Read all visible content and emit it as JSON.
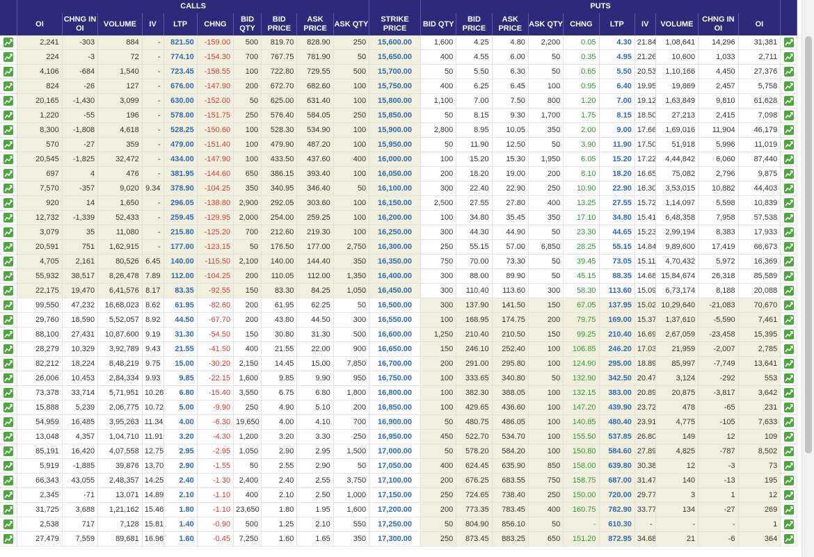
{
  "header": {
    "calls_label": "CALLS",
    "puts_label": "PUTS"
  },
  "columns": {
    "calls": [
      "OI",
      "CHNG IN OI",
      "VOLUME",
      "IV",
      "LTP",
      "CHNG",
      "BID QTY",
      "BID PRICE",
      "ASK PRICE",
      "ASK QTY"
    ],
    "strike": "STRIKE PRICE",
    "puts": [
      "BID QTY",
      "BID PRICE",
      "ASK PRICE",
      "ASK QTY",
      "CHNG",
      "LTP",
      "IV",
      "VOLUME",
      "CHNG IN OI",
      "OI"
    ]
  },
  "colors": {
    "header_bg": "#2c2a7a",
    "itm_bg": "#f1f0dc",
    "ltp": "#2e6bb8",
    "negative": "#d23c3c",
    "positive": "#2e9a30",
    "chart_icon": "#4aa83a"
  },
  "icons": {
    "row_chart": "chart-icon"
  },
  "rows": [
    {
      "strike": "15,600.00",
      "calls": [
        "2,241",
        "-303",
        "884",
        "-",
        "821.50",
        "-159.00",
        "500",
        "819.70",
        "828.90",
        "250"
      ],
      "puts": [
        "1,600",
        "4.25",
        "4.80",
        "2,200",
        "0.05",
        "4.30",
        "21.84",
        "1,08,641",
        "14,296",
        "31,381"
      ]
    },
    {
      "strike": "15,650.00",
      "calls": [
        "224",
        "-3",
        "72",
        "-",
        "774.10",
        "-154.30",
        "700",
        "767.75",
        "781.90",
        "50"
      ],
      "puts": [
        "400",
        "4.55",
        "6.00",
        "50",
        "0.35",
        "4.95",
        "21.26",
        "10,600",
        "1,033",
        "2,711"
      ]
    },
    {
      "strike": "15,700.00",
      "calls": [
        "4,106",
        "-684",
        "1,540",
        "-",
        "723.45",
        "-158.55",
        "100",
        "722.80",
        "729.55",
        "500"
      ],
      "puts": [
        "50",
        "5.50",
        "6.30",
        "50",
        "0.65",
        "5.50",
        "20.53",
        "1,10,166",
        "4,450",
        "27,376"
      ]
    },
    {
      "strike": "15,750.00",
      "calls": [
        "824",
        "-26",
        "127",
        "-",
        "676.00",
        "-147.90",
        "200",
        "672.70",
        "682.60",
        "100"
      ],
      "puts": [
        "400",
        "6.25",
        "6.45",
        "100",
        "0.95",
        "6.40",
        "19.95",
        "19,869",
        "2,457",
        "5,758"
      ]
    },
    {
      "strike": "15,800.00",
      "calls": [
        "20,165",
        "-1,430",
        "3,099",
        "-",
        "630.00",
        "-152.00",
        "50",
        "625.00",
        "631.40",
        "100"
      ],
      "puts": [
        "1,100",
        "7.00",
        "7.50",
        "800",
        "1.20",
        "7.00",
        "19.12",
        "1,63,849",
        "9,810",
        "61,628"
      ]
    },
    {
      "strike": "15,850.00",
      "calls": [
        "1,220",
        "-55",
        "196",
        "-",
        "578.00",
        "-151.75",
        "250",
        "576.40",
        "584.05",
        "250"
      ],
      "puts": [
        "50",
        "8.15",
        "9.30",
        "1,700",
        "1.75",
        "8.15",
        "18.50",
        "27,213",
        "2,415",
        "7,098"
      ]
    },
    {
      "strike": "15,900.00",
      "calls": [
        "8,300",
        "-1,808",
        "4,618",
        "-",
        "528.25",
        "-150.60",
        "100",
        "528.30",
        "534.90",
        "100"
      ],
      "puts": [
        "2,800",
        "8.95",
        "10.05",
        "350",
        "2.00",
        "9.00",
        "17.66",
        "1,69,016",
        "11,904",
        "46,179"
      ]
    },
    {
      "strike": "15,950.00",
      "calls": [
        "570",
        "-27",
        "359",
        "-",
        "479.00",
        "-151.40",
        "100",
        "479.90",
        "487.20",
        "100"
      ],
      "puts": [
        "50",
        "11.90",
        "12.50",
        "50",
        "3.90",
        "11.90",
        "17.50",
        "51,918",
        "5,996",
        "11,019"
      ]
    },
    {
      "strike": "16,000.00",
      "calls": [
        "20,545",
        "-1,825",
        "32,472",
        "-",
        "434.00",
        "-147.90",
        "100",
        "433.50",
        "437.60",
        "400"
      ],
      "puts": [
        "100",
        "15.20",
        "15.30",
        "1,950",
        "6.05",
        "15.20",
        "17.22",
        "4,44,842",
        "6,060",
        "87,440"
      ]
    },
    {
      "strike": "16,050.00",
      "calls": [
        "697",
        "4",
        "476",
        "-",
        "381.95",
        "-144.60",
        "650",
        "386.15",
        "393.40",
        "100"
      ],
      "puts": [
        "200",
        "18.20",
        "19.00",
        "200",
        "8.10",
        "18.20",
        "16.65",
        "75,082",
        "2,796",
        "9,875"
      ]
    },
    {
      "strike": "16,100.00",
      "calls": [
        "7,570",
        "-357",
        "9,020",
        "9.34",
        "378.90",
        "-104.25",
        "350",
        "340.95",
        "346.40",
        "50"
      ],
      "puts": [
        "300",
        "22.40",
        "22.90",
        "250",
        "10.90",
        "22.90",
        "16.30",
        "3,53,015",
        "10,882",
        "44,403"
      ]
    },
    {
      "strike": "16,150.00",
      "calls": [
        "920",
        "14",
        "1,650",
        "-",
        "296.05",
        "-138.80",
        "2,900",
        "292.05",
        "303.60",
        "100"
      ],
      "puts": [
        "2,500",
        "27.55",
        "27.80",
        "400",
        "13.25",
        "27.55",
        "15.72",
        "1,14,097",
        "5,598",
        "10,839"
      ]
    },
    {
      "strike": "16,200.00",
      "calls": [
        "12,732",
        "-1,339",
        "52,433",
        "-",
        "259.45",
        "-129.95",
        "2,000",
        "254.00",
        "259.25",
        "100"
      ],
      "puts": [
        "100",
        "34.80",
        "35.45",
        "350",
        "17.10",
        "34.80",
        "15.41",
        "6,48,358",
        "7,958",
        "57,538"
      ]
    },
    {
      "strike": "16,250.00",
      "calls": [
        "3,079",
        "35",
        "11,080",
        "-",
        "215.80",
        "-125.20",
        "700",
        "212.60",
        "219.30",
        "100"
      ],
      "puts": [
        "300",
        "44.30",
        "44.90",
        "50",
        "23.30",
        "44.65",
        "15.23",
        "2,99,194",
        "8,383",
        "17,933"
      ]
    },
    {
      "strike": "16,300.00",
      "calls": [
        "20,591",
        "751",
        "1,62,915",
        "-",
        "177.00",
        "-123.15",
        "50",
        "176.50",
        "177.00",
        "2,750"
      ],
      "puts": [
        "250",
        "55.15",
        "57.00",
        "6,850",
        "28.25",
        "55.15",
        "14.84",
        "9,89,600",
        "17,419",
        "66,673"
      ]
    },
    {
      "strike": "16,350.00",
      "calls": [
        "4,705",
        "2,161",
        "80,526",
        "6.45",
        "140.00",
        "-115.50",
        "2,100",
        "140.00",
        "144.40",
        "350"
      ],
      "puts": [
        "750",
        "70.00",
        "73.30",
        "50",
        "39.45",
        "73.05",
        "15.11",
        "4,70,432",
        "5,972",
        "16,369"
      ]
    },
    {
      "strike": "16,400.00",
      "calls": [
        "55,932",
        "38,517",
        "8,26,478",
        "7.89",
        "112.00",
        "-104.25",
        "200",
        "110.05",
        "112.00",
        "1,350"
      ],
      "puts": [
        "300",
        "88.00",
        "89.90",
        "50",
        "45.15",
        "88.35",
        "14.68",
        "15,84,674",
        "26,318",
        "85,589"
      ]
    },
    {
      "strike": "16,450.00",
      "calls": [
        "22,175",
        "19,470",
        "6,41,576",
        "8.17",
        "83.35",
        "-92.55",
        "150",
        "83.30",
        "84.25",
        "1,050"
      ],
      "puts": [
        "300",
        "110.40",
        "113.60",
        "300",
        "58.30",
        "113.60",
        "15.09",
        "6,73,174",
        "8,188",
        "20,088"
      ]
    },
    {
      "strike": "16,500.00",
      "calls": [
        "99,550",
        "47,232",
        "16,68,023",
        "8.62",
        "61.95",
        "-82.60",
        "200",
        "61.95",
        "62.25",
        "50"
      ],
      "puts": [
        "300",
        "137.90",
        "141.50",
        "150",
        "67.05",
        "137.95",
        "15.02",
        "10,29,640",
        "-21,083",
        "70,670"
      ]
    },
    {
      "strike": "16,550.00",
      "calls": [
        "29,760",
        "18,590",
        "5,52,057",
        "8.92",
        "44.50",
        "-67.70",
        "200",
        "43.80",
        "44.50",
        "300"
      ],
      "puts": [
        "100",
        "168.95",
        "174.75",
        "200",
        "79.75",
        "169.00",
        "15.37",
        "1,37,610",
        "-5,590",
        "7,461"
      ]
    },
    {
      "strike": "16,600.00",
      "calls": [
        "88,100",
        "27,431",
        "10,87,600",
        "9.19",
        "31.30",
        "-54.50",
        "150",
        "30.80",
        "31.30",
        "500"
      ],
      "puts": [
        "1,250",
        "210.40",
        "210.50",
        "150",
        "99.25",
        "210.40",
        "16.69",
        "2,67,059",
        "-23,458",
        "15,395"
      ]
    },
    {
      "strike": "16,650.00",
      "calls": [
        "28,279",
        "10,329",
        "3,92,789",
        "9.43",
        "21.55",
        "-41.50",
        "400",
        "21.55",
        "22.00",
        "900"
      ],
      "puts": [
        "150",
        "246.10",
        "252.40",
        "100",
        "106.85",
        "246.20",
        "17.03",
        "21,959",
        "-2,007",
        "2,785"
      ]
    },
    {
      "strike": "16,700.00",
      "calls": [
        "82,212",
        "18,224",
        "8,48,219",
        "9.75",
        "15.00",
        "-30.20",
        "2,150",
        "14.45",
        "15.00",
        "7,850"
      ],
      "puts": [
        "200",
        "291.00",
        "295.80",
        "100",
        "124.90",
        "295.00",
        "18.89",
        "85,997",
        "-7,749",
        "13,641"
      ]
    },
    {
      "strike": "16,750.00",
      "calls": [
        "26,006",
        "10,453",
        "2,84,334",
        "9.93",
        "9.85",
        "-22.15",
        "1,600",
        "9.85",
        "9.90",
        "950"
      ],
      "puts": [
        "100",
        "333.65",
        "340.80",
        "50",
        "132.90",
        "342.50",
        "20.47",
        "3,124",
        "-292",
        "553"
      ]
    },
    {
      "strike": "16,800.00",
      "calls": [
        "73,378",
        "33,714",
        "5,71,951",
        "10.26",
        "6.80",
        "-15.40",
        "3,550",
        "6.75",
        "6.80",
        "1,800"
      ],
      "puts": [
        "100",
        "382.30",
        "388.05",
        "100",
        "132.15",
        "383.00",
        "20.89",
        "20,875",
        "-3,817",
        "3,642"
      ]
    },
    {
      "strike": "16,850.00",
      "calls": [
        "15,888",
        "5,239",
        "2,06,775",
        "10.72",
        "5.00",
        "-9.90",
        "250",
        "4.90",
        "5.10",
        "200"
      ],
      "puts": [
        "100",
        "429.65",
        "436.60",
        "100",
        "147.20",
        "439.90",
        "23.72",
        "478",
        "-65",
        "231"
      ]
    },
    {
      "strike": "16,900.00",
      "calls": [
        "54,959",
        "16,485",
        "3,95,263",
        "11.34",
        "4.00",
        "-6.30",
        "19,650",
        "4.00",
        "4.10",
        "700"
      ],
      "puts": [
        "50",
        "480.75",
        "486.05",
        "100",
        "140.85",
        "480.40",
        "23.91",
        "4,775",
        "-105",
        "7,633"
      ]
    },
    {
      "strike": "16,950.00",
      "calls": [
        "13,048",
        "4,357",
        "1,04,710",
        "11.91",
        "3.20",
        "-4.30",
        "1,200",
        "3.20",
        "3.30",
        "250"
      ],
      "puts": [
        "450",
        "522.70",
        "534.70",
        "100",
        "155.50",
        "537.85",
        "26.80",
        "149",
        "12",
        "109"
      ]
    },
    {
      "strike": "17,000.00",
      "calls": [
        "85,191",
        "16,420",
        "4,07,558",
        "12.75",
        "2.95",
        "-2.95",
        "1,050",
        "2.90",
        "2.95",
        "1,500"
      ],
      "puts": [
        "50",
        "578.20",
        "584.20",
        "100",
        "150.80",
        "584.60",
        "27.89",
        "4,825",
        "-787",
        "8,502"
      ]
    },
    {
      "strike": "17,050.00",
      "calls": [
        "5,919",
        "-1,885",
        "39,876",
        "13.70",
        "2.90",
        "-1.55",
        "50",
        "2.55",
        "2.90",
        "50"
      ],
      "puts": [
        "400",
        "624.45",
        "635.90",
        "850",
        "158.00",
        "639.80",
        "30.38",
        "12",
        "-3",
        "73"
      ]
    },
    {
      "strike": "17,100.00",
      "calls": [
        "66,343",
        "43,055",
        "2,48,357",
        "14.25",
        "2.40",
        "-1.30",
        "2,400",
        "2.40",
        "2.55",
        "3,750"
      ],
      "puts": [
        "200",
        "676.25",
        "683.55",
        "750",
        "158.75",
        "687.00",
        "31.47",
        "140",
        "-13",
        "195"
      ]
    },
    {
      "strike": "17,150.00",
      "calls": [
        "2,345",
        "-71",
        "13,071",
        "14.89",
        "2.10",
        "-1.10",
        "400",
        "2.10",
        "2.50",
        "1,000"
      ],
      "puts": [
        "250",
        "724.65",
        "738.40",
        "250",
        "150.00",
        "720.00",
        "29.77",
        "3",
        "1",
        "12"
      ]
    },
    {
      "strike": "17,200.00",
      "calls": [
        "31,725",
        "3,688",
        "1,21,162",
        "15.46",
        "1.80",
        "-1.10",
        "23,650",
        "1.80",
        "1.95",
        "1,600"
      ],
      "puts": [
        "200",
        "773.35",
        "783.45",
        "400",
        "160.75",
        "782.90",
        "33.77",
        "134",
        "-27",
        "269"
      ]
    },
    {
      "strike": "17,250.00",
      "calls": [
        "2,538",
        "717",
        "7,128",
        "15.81",
        "1.40",
        "-0.90",
        "500",
        "1.25",
        "2.10",
        "550"
      ],
      "puts": [
        "50",
        "804.90",
        "856.10",
        "50",
        "-",
        "610.30",
        "-",
        "-",
        "-",
        "1"
      ]
    },
    {
      "strike": "17,300.00",
      "calls": [
        "27,479",
        "7,559",
        "89,681",
        "16.96",
        "1.60",
        "-0.45",
        "7,250",
        "1.60",
        "1.65",
        "350"
      ],
      "puts": [
        "250",
        "873.45",
        "883.25",
        "650",
        "151.20",
        "872.95",
        "34.68",
        "21",
        "-6",
        "364"
      ]
    }
  ]
}
